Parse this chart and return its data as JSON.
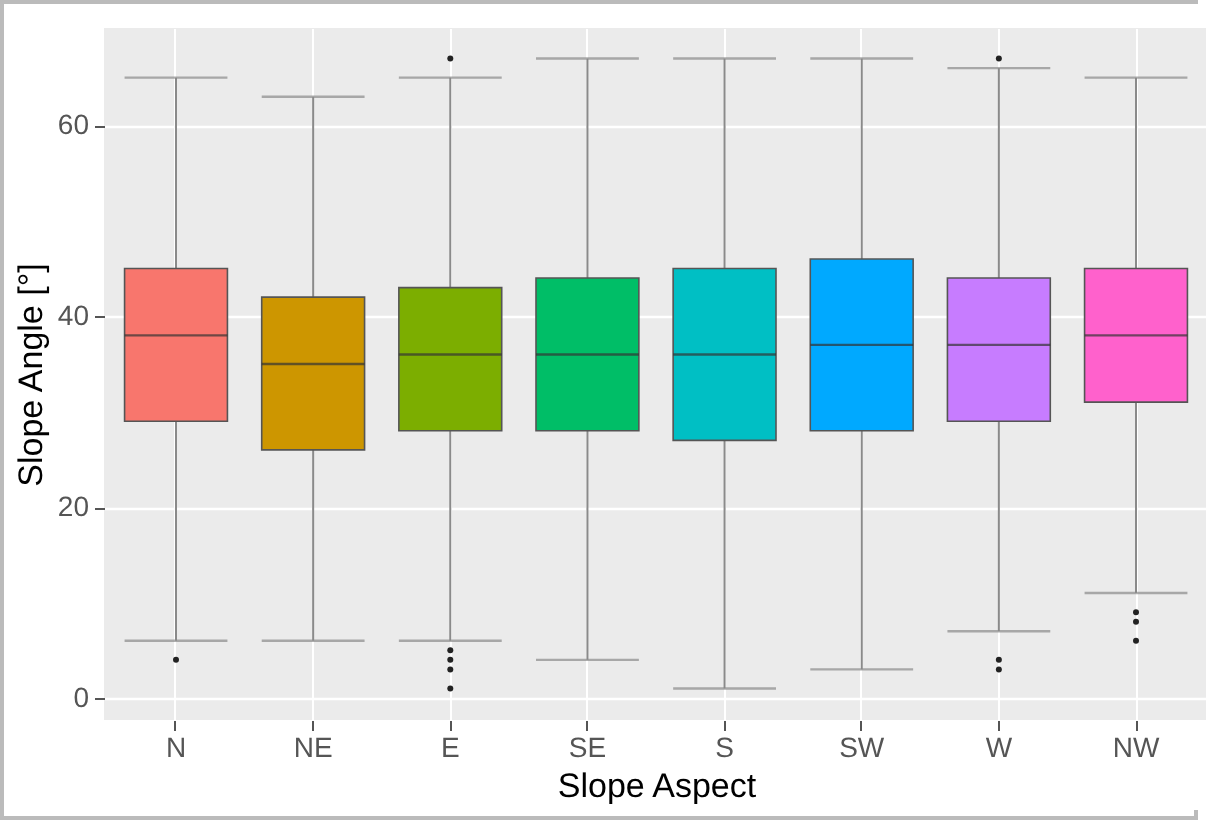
{
  "chart_data": {
    "type": "box",
    "xlabel": "Slope Aspect",
    "ylabel": "Slope Angle [°]",
    "categories": [
      "N",
      "NE",
      "E",
      "SE",
      "S",
      "SW",
      "W",
      "NW"
    ],
    "boxes": [
      {
        "low": 6,
        "q1": 29,
        "median": 38,
        "q3": 45,
        "high": 65,
        "outliers": [
          4
        ]
      },
      {
        "low": 6,
        "q1": 26,
        "median": 35,
        "q3": 42,
        "high": 63
      },
      {
        "low": 6,
        "q1": 28,
        "median": 36,
        "q3": 43,
        "high": 65,
        "outliers": [
          67,
          5,
          4,
          3,
          1
        ]
      },
      {
        "low": 4,
        "q1": 28,
        "median": 36,
        "q3": 44,
        "high": 67
      },
      {
        "low": 1,
        "q1": 27,
        "median": 36,
        "q3": 45,
        "high": 67
      },
      {
        "low": 3,
        "q1": 28,
        "median": 37,
        "q3": 46,
        "high": 67
      },
      {
        "low": 7,
        "q1": 29,
        "median": 37,
        "q3": 44,
        "high": 66,
        "outliers": [
          67,
          4,
          3
        ]
      },
      {
        "low": 11,
        "q1": 31,
        "median": 38,
        "q3": 45,
        "high": 65,
        "outliers": [
          9,
          8,
          6
        ]
      }
    ],
    "colors": [
      "#f8766d",
      "#cd9600",
      "#7cae00",
      "#00be67",
      "#00bfc4",
      "#00a9ff",
      "#c77cff",
      "#ff61cc"
    ],
    "ylim": [
      -2.3,
      70.2
    ],
    "yticks": [
      0,
      20,
      40,
      60
    ],
    "grid": true
  }
}
